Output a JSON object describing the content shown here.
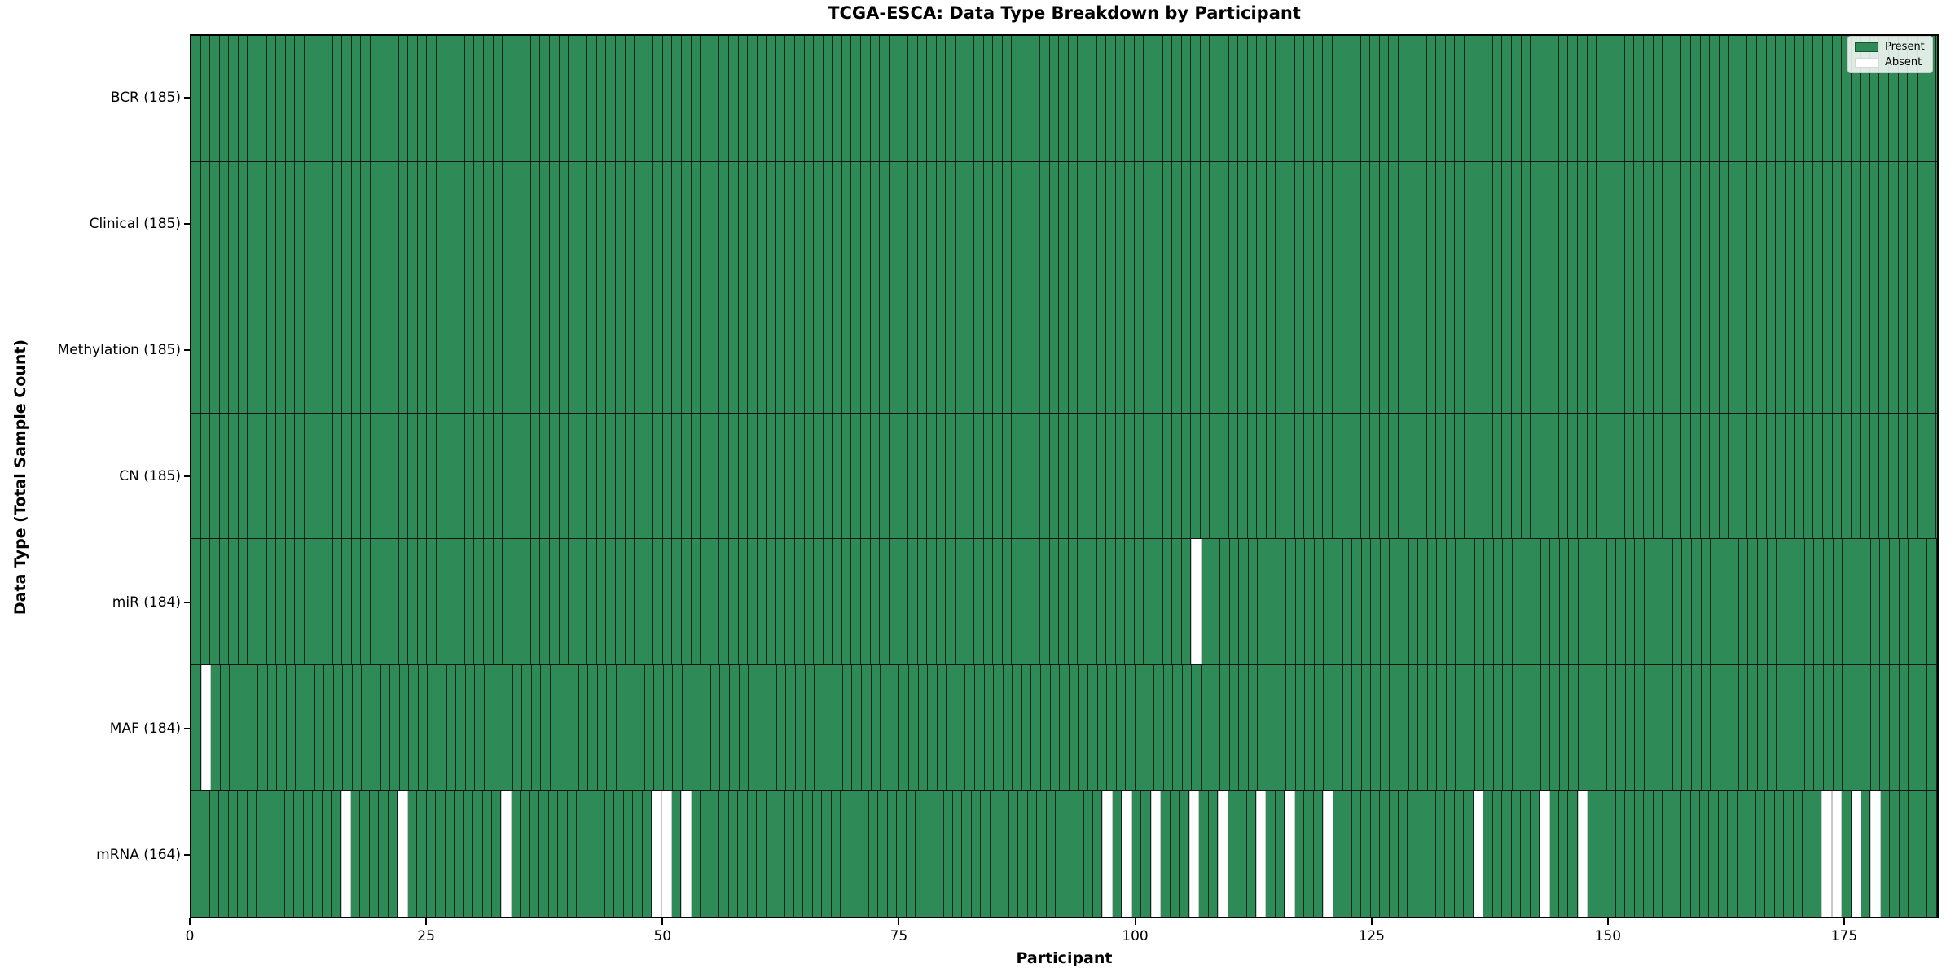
{
  "title": "TCGA-ESCA: Data Type Breakdown by Participant",
  "axes": {
    "x_label": "Participant",
    "y_label": "Data Type (Total Sample Count)",
    "x_ticks": [
      0,
      25,
      50,
      75,
      100,
      125,
      150,
      175
    ],
    "x_max": 185
  },
  "legend": {
    "present_label": "Present",
    "absent_label": "Absent"
  },
  "colors": {
    "present": "#2e8b57",
    "absent": "#ffffff",
    "cell_edge": "rgba(0,0,0,0.72)"
  },
  "chart_data": {
    "type": "heatmap",
    "title": "TCGA-ESCA: Data Type Breakdown by Participant",
    "xlabel": "Participant",
    "ylabel": "Data Type (Total Sample Count)",
    "x_range": [
      0,
      185
    ],
    "n_participants": 185,
    "x_ticks": [
      0,
      25,
      50,
      75,
      100,
      125,
      150,
      175
    ],
    "legend_entries": [
      {
        "label": "Present",
        "color": "#2e8b57"
      },
      {
        "label": "Absent",
        "color": "#ffffff"
      }
    ],
    "grid": "per-column edges visible",
    "legend_position": "upper right",
    "rows": [
      {
        "name": "BCR",
        "label": "BCR (185)",
        "present_count": 185,
        "absent_participants": []
      },
      {
        "name": "Clinical",
        "label": "Clinical (185)",
        "present_count": 185,
        "absent_participants": []
      },
      {
        "name": "Methylation",
        "label": "Methylation (185)",
        "present_count": 185,
        "absent_participants": []
      },
      {
        "name": "CN",
        "label": "CN (185)",
        "present_count": 185,
        "absent_participants": []
      },
      {
        "name": "miR",
        "label": "miR (184)",
        "present_count": 184,
        "absent_participants": [
          106
        ]
      },
      {
        "name": "MAF",
        "label": "MAF (184)",
        "present_count": 184,
        "absent_participants": [
          1
        ]
      },
      {
        "name": "mRNA",
        "label": "mRNA (164)",
        "present_count": 164,
        "absent_participants": [
          16,
          22,
          33,
          49,
          50,
          52,
          97,
          99,
          102,
          106,
          109,
          113,
          116,
          120,
          136,
          143,
          147,
          173,
          174,
          176,
          178
        ]
      }
    ]
  }
}
